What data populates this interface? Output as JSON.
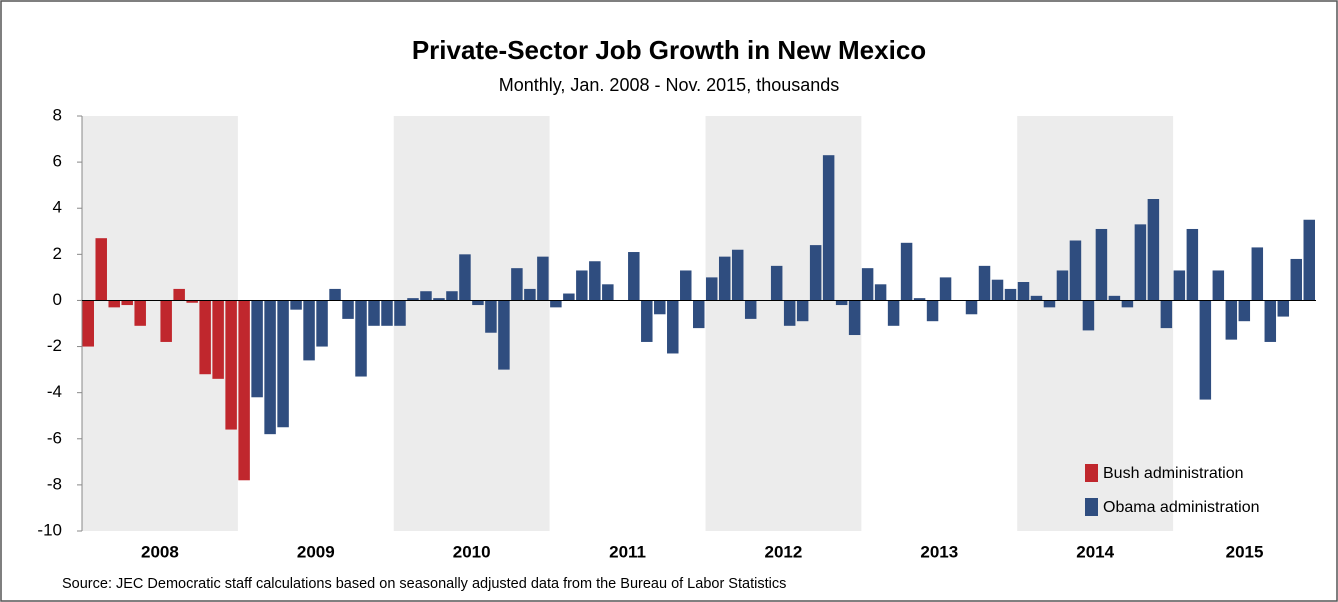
{
  "chart_data": {
    "type": "bar",
    "title": "Private-Sector Job Growth in New Mexico",
    "subtitle": "Monthly, Jan. 2008 - Nov. 2015, thousands",
    "source": "Source: JEC Democratic staff calculations based on seasonally adjusted data from the Bureau of Labor Statistics",
    "years": [
      "2008",
      "2009",
      "2010",
      "2011",
      "2012",
      "2013",
      "2014",
      "2015"
    ],
    "shade_alternate_years": true,
    "ylim": [
      -10,
      8
    ],
    "yticks": [
      8,
      6,
      4,
      2,
      0,
      -2,
      -4,
      -6,
      -8,
      -10
    ],
    "legend": "lower right",
    "series": [
      {
        "name": "Bush administration",
        "color": "#c0272d",
        "values": [
          -2.0,
          2.7,
          -0.3,
          -0.2,
          -1.1,
          0,
          -1.8,
          0.5,
          -0.1,
          -3.2,
          -3.4,
          -5.6,
          -7.8,
          null,
          null,
          null,
          null,
          null,
          null,
          null,
          null,
          null,
          null,
          null,
          null,
          null,
          null,
          null,
          null,
          null,
          null,
          null,
          null,
          null,
          null,
          null,
          null,
          null,
          null,
          null,
          null,
          null,
          null,
          null,
          null,
          null,
          null,
          null,
          null,
          null,
          null,
          null,
          null,
          null,
          null,
          null,
          null,
          null,
          null,
          null,
          null,
          null,
          null,
          null,
          null,
          null,
          null,
          null,
          null,
          null,
          null,
          null,
          null,
          null,
          null,
          null,
          null,
          null,
          null,
          null,
          null,
          null,
          null,
          null,
          null,
          null,
          null,
          null,
          null,
          null,
          null,
          null,
          null,
          null,
          null
        ]
      },
      {
        "name": "Obama administration",
        "color": "#2f4d7f",
        "values": [
          null,
          null,
          null,
          null,
          null,
          null,
          null,
          null,
          null,
          null,
          null,
          null,
          null,
          -4.2,
          -5.8,
          -5.5,
          -0.4,
          -2.6,
          -2.0,
          0.5,
          -0.8,
          -3.3,
          -1.1,
          -1.1,
          -1.1,
          0.1,
          0.4,
          0.1,
          0.4,
          2.0,
          -0.2,
          -1.4,
          -3.0,
          1.4,
          0.5,
          1.9,
          -0.3,
          0.3,
          1.3,
          1.7,
          0.7,
          0,
          2.1,
          -1.8,
          -0.6,
          -2.3,
          1.3,
          -1.2,
          1.0,
          1.9,
          2.2,
          -0.8,
          0,
          1.5,
          -1.1,
          -0.9,
          2.4,
          6.3,
          -0.2,
          -1.5,
          1.4,
          0.7,
          -1.1,
          2.5,
          0.1,
          -0.9,
          1.0,
          0,
          -0.6,
          1.5,
          0.9,
          0.5,
          0.8,
          0.2,
          -0.3,
          1.3,
          2.6,
          -1.3,
          3.1,
          0.2,
          -0.3,
          3.3,
          4.4,
          -1.2,
          1.3,
          3.1,
          -4.3,
          1.3,
          -1.7,
          -0.9,
          2.3,
          -1.8,
          -0.7,
          1.8,
          3.5
        ]
      }
    ]
  }
}
